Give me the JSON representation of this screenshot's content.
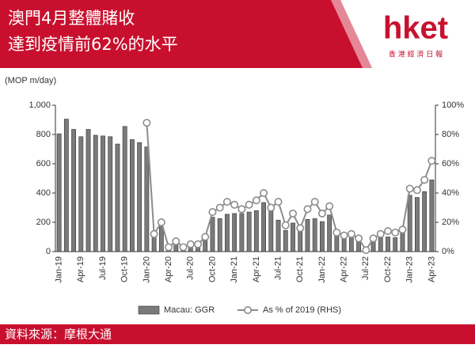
{
  "header": {
    "title_lines": [
      "澳門4月整體賭收",
      "達到疫情前62%的水平"
    ],
    "logo": "hket",
    "logo_sub": "香 港 經 濟 日 報"
  },
  "footer": "資料來源：摩根大通",
  "chart_data": {
    "type": "bar",
    "y_axis_label": "(MOP m/day)",
    "categories": [
      "Jan-19",
      null,
      null,
      "Apr-19",
      null,
      null,
      "Jul-19",
      null,
      null,
      "Oct-19",
      null,
      null,
      "Jan-20",
      null,
      null,
      "Apr-20",
      null,
      null,
      "Jul-20",
      null,
      null,
      "Oct-20",
      null,
      null,
      "Jan-21",
      null,
      null,
      "Apr-21",
      null,
      null,
      "Jul-21",
      null,
      null,
      "Oct-21",
      null,
      null,
      "Jan-22",
      null,
      null,
      "Apr-22",
      null,
      null,
      "Jul-22",
      null,
      null,
      "Oct-22",
      null,
      null,
      "Jan-23",
      null,
      null,
      "Apr-23"
    ],
    "series": [
      {
        "name": "Macau: GGR",
        "type": "bar",
        "color": "#7a7a7a",
        "values": [
          805,
          905,
          835,
          785,
          835,
          795,
          790,
          785,
          735,
          855,
          765,
          745,
          715,
          100,
          170,
          25,
          55,
          25,
          45,
          45,
          75,
          235,
          225,
          255,
          260,
          260,
          270,
          280,
          335,
          290,
          215,
          145,
          195,
          140,
          220,
          225,
          205,
          250,
          110,
          95,
          110,
          80,
          12,
          70,
          95,
          100,
          95,
          130,
          385,
          370,
          410,
          490
        ]
      },
      {
        "name": "As % of 2019 (RHS)",
        "type": "line",
        "axis": "y2",
        "color": "#8c8c8c",
        "values": [
          null,
          null,
          null,
          null,
          null,
          null,
          null,
          null,
          null,
          null,
          null,
          null,
          88,
          12,
          20,
          3,
          7,
          3,
          5,
          5,
          10,
          27,
          30,
          34,
          32,
          29,
          32,
          35,
          40,
          30,
          34,
          18,
          26,
          16,
          29,
          34,
          26,
          31,
          13,
          11,
          12,
          9,
          1,
          9,
          12,
          14,
          13,
          15,
          43,
          42,
          49,
          62
        ]
      }
    ],
    "ylim": [
      0,
      1000
    ],
    "yticks": [
      0,
      200,
      400,
      600,
      800,
      {
        "value": 1000,
        "label": "1,000"
      }
    ],
    "y2lim": [
      0,
      100
    ],
    "y2ticks": [
      {
        "value": 0,
        "label": "0%"
      },
      {
        "value": 20,
        "label": "20%"
      },
      {
        "value": 40,
        "label": "40%"
      },
      {
        "value": 60,
        "label": "60%"
      },
      {
        "value": 80,
        "label": "80%"
      },
      {
        "value": 100,
        "label": "100%"
      }
    ],
    "legend": "bottom"
  }
}
